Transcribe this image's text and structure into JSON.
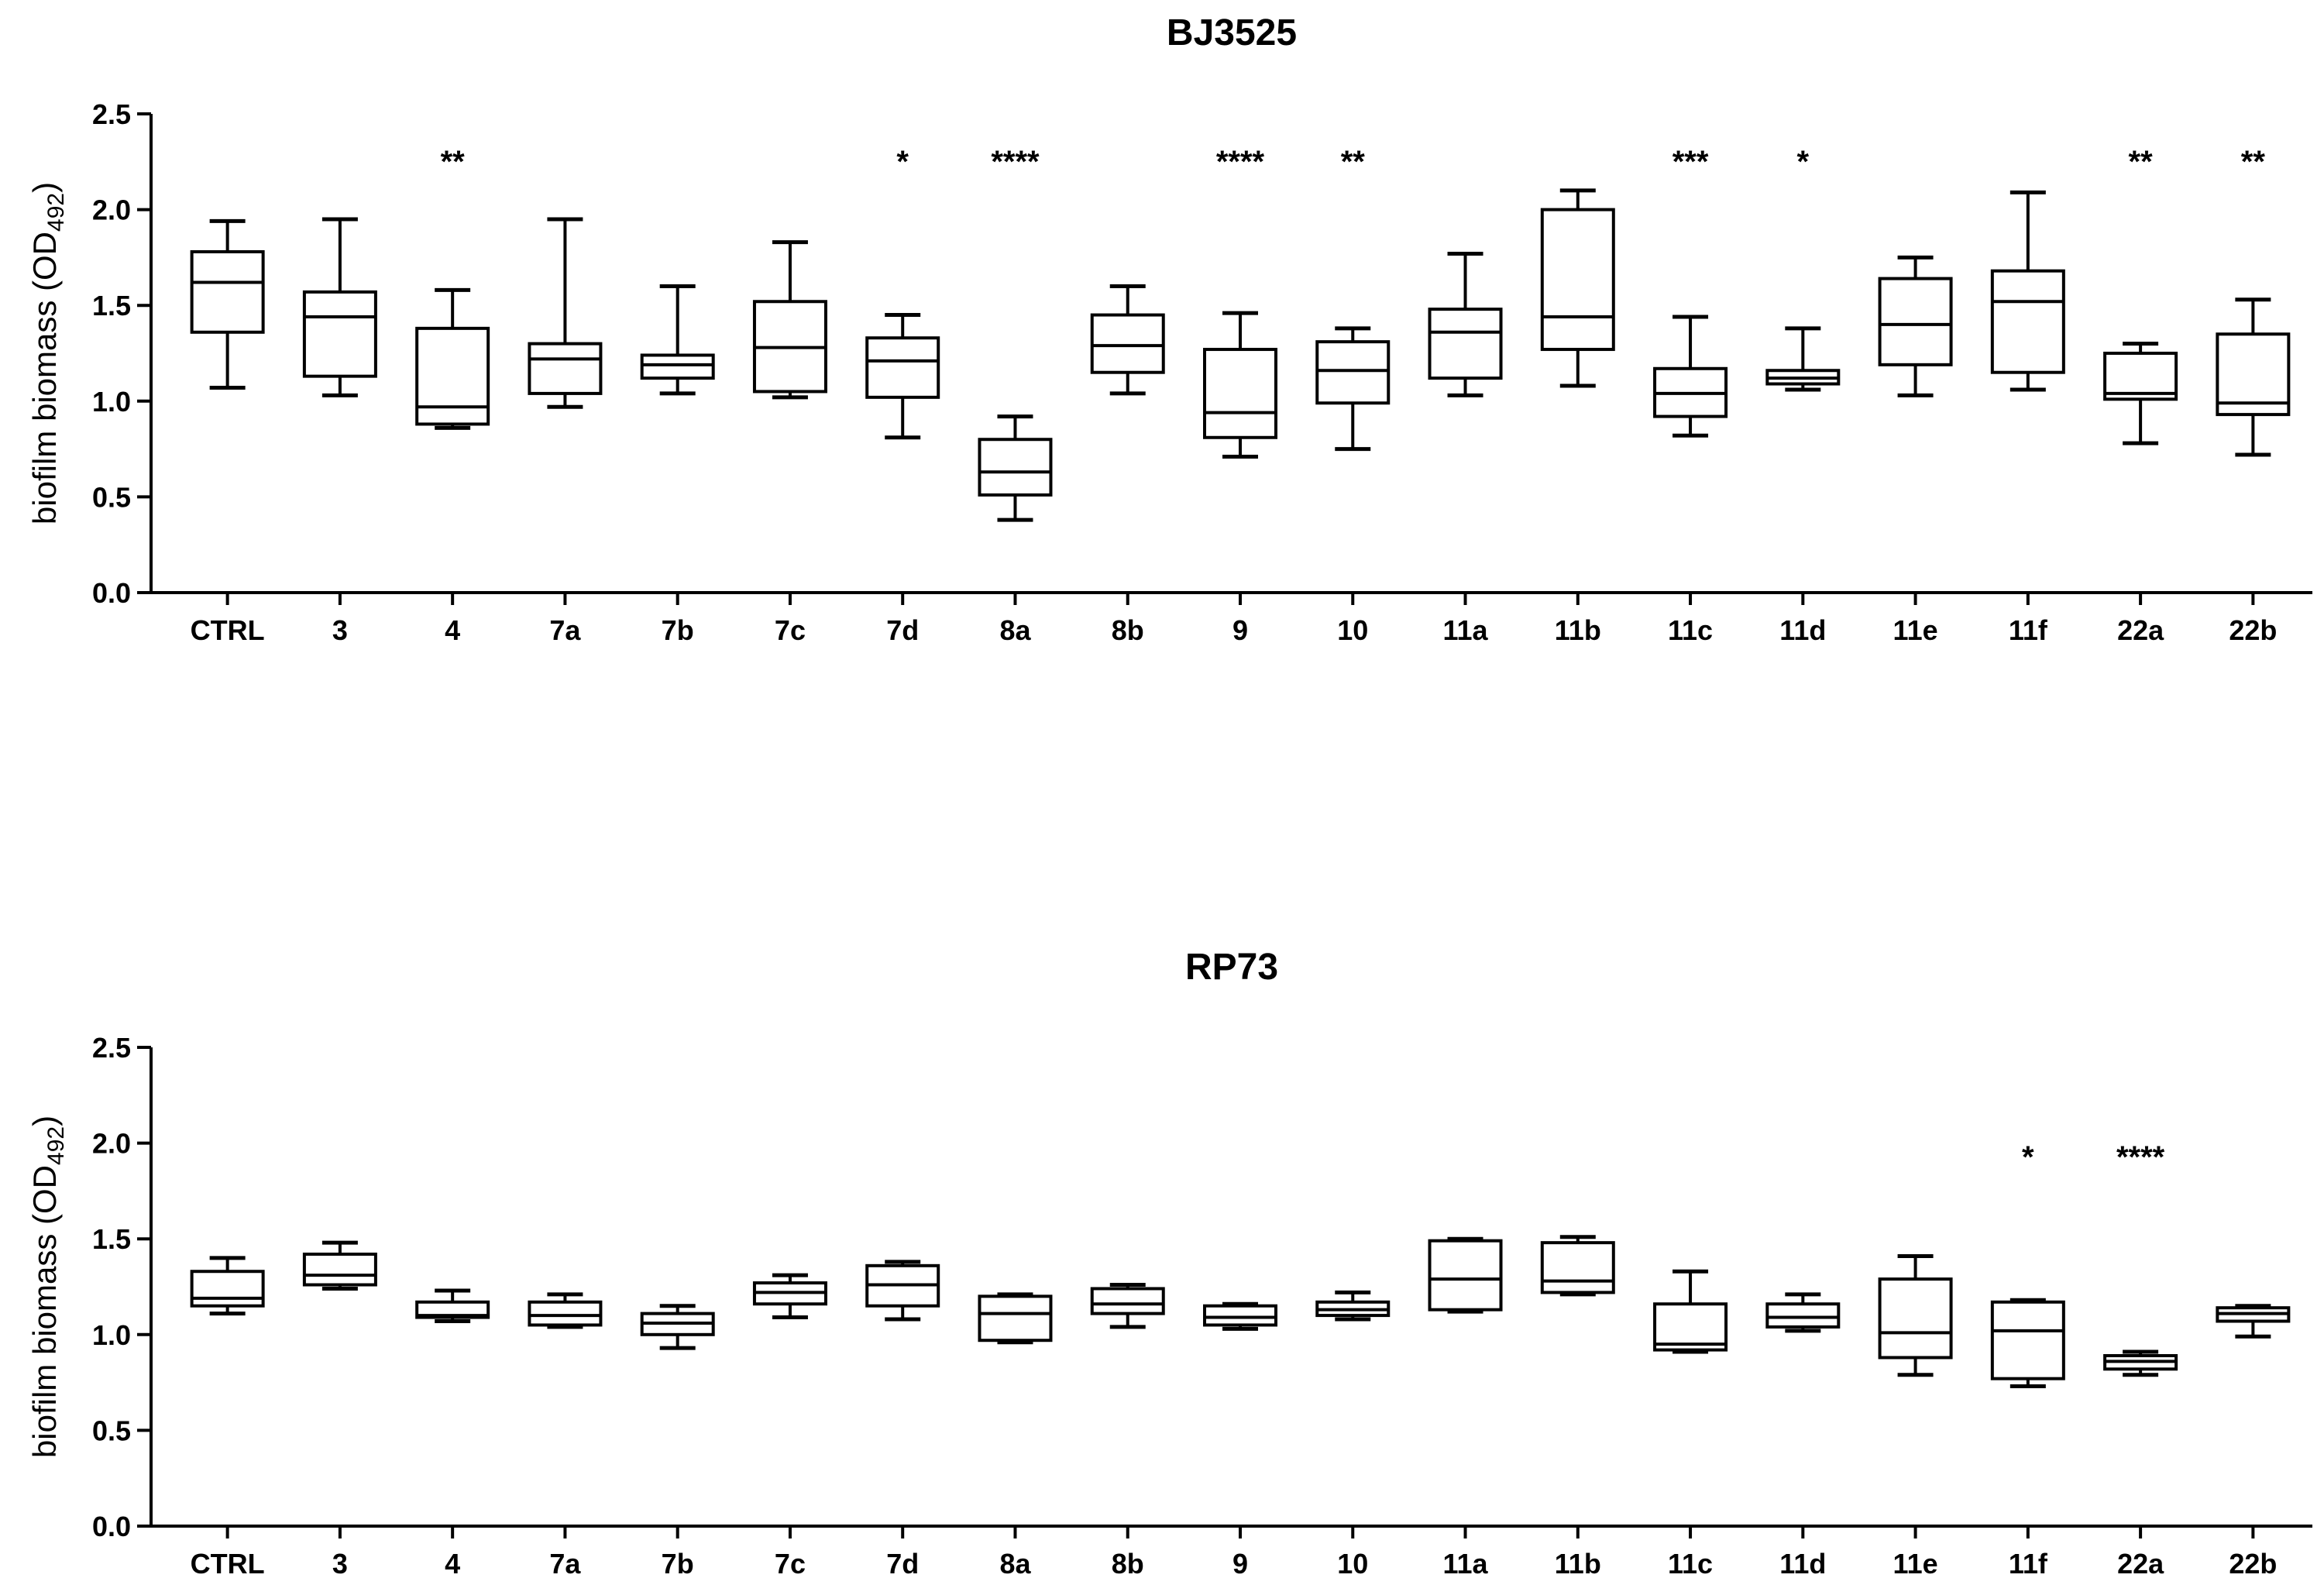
{
  "chart_data": [
    {
      "type": "box",
      "title": "BJ3525",
      "ylabel": "biofilm biomass (OD",
      "ylabel_sub": "492",
      "ylabel_close": ")",
      "ylim": [
        0,
        2.5
      ],
      "yticks": [
        "0.0",
        "0.5",
        "1.0",
        "1.5",
        "2.0",
        "2.5"
      ],
      "categories": [
        "CTRL",
        "3",
        "4",
        "7a",
        "7b",
        "7c",
        "7d",
        "8a",
        "8b",
        "9",
        "10",
        "11a",
        "11b",
        "11c",
        "11d",
        "11e",
        "11f",
        "22a",
        "22b"
      ],
      "boxes": [
        {
          "min": 1.07,
          "q1": 1.36,
          "median": 1.62,
          "q3": 1.78,
          "max": 1.94
        },
        {
          "min": 1.03,
          "q1": 1.13,
          "median": 1.44,
          "q3": 1.57,
          "max": 1.95
        },
        {
          "min": 0.86,
          "q1": 0.88,
          "median": 0.97,
          "q3": 1.38,
          "max": 1.58
        },
        {
          "min": 0.97,
          "q1": 1.04,
          "median": 1.22,
          "q3": 1.3,
          "max": 1.95
        },
        {
          "min": 1.04,
          "q1": 1.12,
          "median": 1.19,
          "q3": 1.24,
          "max": 1.6
        },
        {
          "min": 1.02,
          "q1": 1.05,
          "median": 1.28,
          "q3": 1.52,
          "max": 1.83
        },
        {
          "min": 0.81,
          "q1": 1.02,
          "median": 1.21,
          "q3": 1.33,
          "max": 1.45
        },
        {
          "min": 0.38,
          "q1": 0.51,
          "median": 0.63,
          "q3": 0.8,
          "max": 0.92
        },
        {
          "min": 1.04,
          "q1": 1.15,
          "median": 1.29,
          "q3": 1.45,
          "max": 1.6
        },
        {
          "min": 0.71,
          "q1": 0.81,
          "median": 0.94,
          "q3": 1.27,
          "max": 1.46
        },
        {
          "min": 0.75,
          "q1": 0.99,
          "median": 1.16,
          "q3": 1.31,
          "max": 1.38
        },
        {
          "min": 1.03,
          "q1": 1.12,
          "median": 1.36,
          "q3": 1.48,
          "max": 1.77
        },
        {
          "min": 1.08,
          "q1": 1.27,
          "median": 1.44,
          "q3": 2.0,
          "max": 2.1
        },
        {
          "min": 0.82,
          "q1": 0.92,
          "median": 1.04,
          "q3": 1.17,
          "max": 1.44
        },
        {
          "min": 1.06,
          "q1": 1.09,
          "median": 1.12,
          "q3": 1.16,
          "max": 1.38
        },
        {
          "min": 1.03,
          "q1": 1.19,
          "median": 1.4,
          "q3": 1.64,
          "max": 1.75
        },
        {
          "min": 1.06,
          "q1": 1.15,
          "median": 1.52,
          "q3": 1.68,
          "max": 2.09
        },
        {
          "min": 0.78,
          "q1": 1.01,
          "median": 1.04,
          "q3": 1.25,
          "max": 1.3
        },
        {
          "min": 0.72,
          "q1": 0.93,
          "median": 0.99,
          "q3": 1.35,
          "max": 1.53
        }
      ],
      "significance": [
        "",
        "",
        "**",
        "",
        "",
        "",
        "*",
        "****",
        "",
        "****",
        "**",
        "",
        "",
        "***",
        "*",
        "",
        "",
        "**",
        "**"
      ]
    },
    {
      "type": "box",
      "title": "RP73",
      "ylabel": "biofilm biomass (OD",
      "ylabel_sub": "492",
      "ylabel_close": ")",
      "ylim": [
        0,
        2.5
      ],
      "yticks": [
        "0.0",
        "0.5",
        "1.0",
        "1.5",
        "2.0",
        "2.5"
      ],
      "categories": [
        "CTRL",
        "3",
        "4",
        "7a",
        "7b",
        "7c",
        "7d",
        "8a",
        "8b",
        "9",
        "10",
        "11a",
        "11b",
        "11c",
        "11d",
        "11e",
        "11f",
        "22a",
        "22b"
      ],
      "boxes": [
        {
          "min": 1.11,
          "q1": 1.15,
          "median": 1.19,
          "q3": 1.33,
          "max": 1.4
        },
        {
          "min": 1.24,
          "q1": 1.26,
          "median": 1.31,
          "q3": 1.42,
          "max": 1.48
        },
        {
          "min": 1.07,
          "q1": 1.09,
          "median": 1.1,
          "q3": 1.17,
          "max": 1.23
        },
        {
          "min": 1.04,
          "q1": 1.05,
          "median": 1.1,
          "q3": 1.17,
          "max": 1.21
        },
        {
          "min": 0.93,
          "q1": 1.0,
          "median": 1.06,
          "q3": 1.11,
          "max": 1.15
        },
        {
          "min": 1.09,
          "q1": 1.16,
          "median": 1.22,
          "q3": 1.27,
          "max": 1.31
        },
        {
          "min": 1.08,
          "q1": 1.15,
          "median": 1.26,
          "q3": 1.36,
          "max": 1.38
        },
        {
          "min": 0.96,
          "q1": 0.97,
          "median": 1.11,
          "q3": 1.2,
          "max": 1.21
        },
        {
          "min": 1.04,
          "q1": 1.11,
          "median": 1.16,
          "q3": 1.24,
          "max": 1.26
        },
        {
          "min": 1.03,
          "q1": 1.05,
          "median": 1.09,
          "q3": 1.15,
          "max": 1.16
        },
        {
          "min": 1.08,
          "q1": 1.1,
          "median": 1.13,
          "q3": 1.17,
          "max": 1.22
        },
        {
          "min": 1.12,
          "q1": 1.13,
          "median": 1.29,
          "q3": 1.49,
          "max": 1.5
        },
        {
          "min": 1.21,
          "q1": 1.22,
          "median": 1.28,
          "q3": 1.48,
          "max": 1.51
        },
        {
          "min": 0.91,
          "q1": 0.92,
          "median": 0.95,
          "q3": 1.16,
          "max": 1.33
        },
        {
          "min": 1.02,
          "q1": 1.04,
          "median": 1.09,
          "q3": 1.16,
          "max": 1.21
        },
        {
          "min": 0.79,
          "q1": 0.88,
          "median": 1.01,
          "q3": 1.29,
          "max": 1.41
        },
        {
          "min": 0.73,
          "q1": 0.77,
          "median": 1.02,
          "q3": 1.17,
          "max": 1.18
        },
        {
          "min": 0.79,
          "q1": 0.82,
          "median": 0.86,
          "q3": 0.89,
          "max": 0.91
        },
        {
          "min": 0.99,
          "q1": 1.07,
          "median": 1.11,
          "q3": 1.14,
          "max": 1.15
        }
      ],
      "significance": [
        "",
        "",
        "",
        "",
        "",
        "",
        "",
        "",
        "",
        "",
        "",
        "",
        "",
        "",
        "",
        "",
        "*",
        "****",
        ""
      ]
    }
  ]
}
